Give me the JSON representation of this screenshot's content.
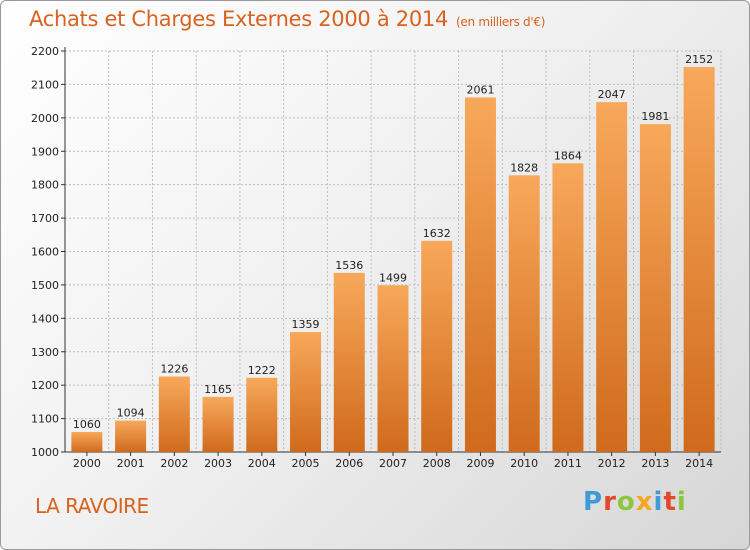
{
  "header": {
    "title": "Achats et Charges Externes 2000 à 2014",
    "unit": "(en milliers d'€)"
  },
  "footer": {
    "place": "LA RAVOIRE",
    "logo": {
      "text": "Proxiti",
      "letter_colors": [
        "#3f9bd6",
        "#e2482b",
        "#8dc63f",
        "#f5a623",
        "#3f9bd6",
        "#e2482b",
        "#8dc63f"
      ]
    }
  },
  "colors": {
    "accent": "#d9621e",
    "bar_light": "#f8a85a",
    "bar_dark": "#d06a1c",
    "grid": "#bdbdbd"
  },
  "chart_data": {
    "type": "bar",
    "title": "Achats et Charges Externes 2000 à 2014",
    "subtitle": "(en milliers d'€)",
    "xlabel": "",
    "ylabel": "",
    "categories": [
      "2000",
      "2001",
      "2002",
      "2003",
      "2004",
      "2005",
      "2006",
      "2007",
      "2008",
      "2009",
      "2010",
      "2011",
      "2012",
      "2013",
      "2014"
    ],
    "values": [
      1060,
      1094,
      1226,
      1165,
      1222,
      1359,
      1536,
      1499,
      1632,
      2061,
      1828,
      1864,
      2047,
      1981,
      2152
    ],
    "ylim": [
      1000,
      2200
    ],
    "yticks": [
      1000,
      1100,
      1200,
      1300,
      1400,
      1500,
      1600,
      1700,
      1800,
      1900,
      2000,
      2100,
      2200
    ],
    "grid": true,
    "data_labels": true
  }
}
